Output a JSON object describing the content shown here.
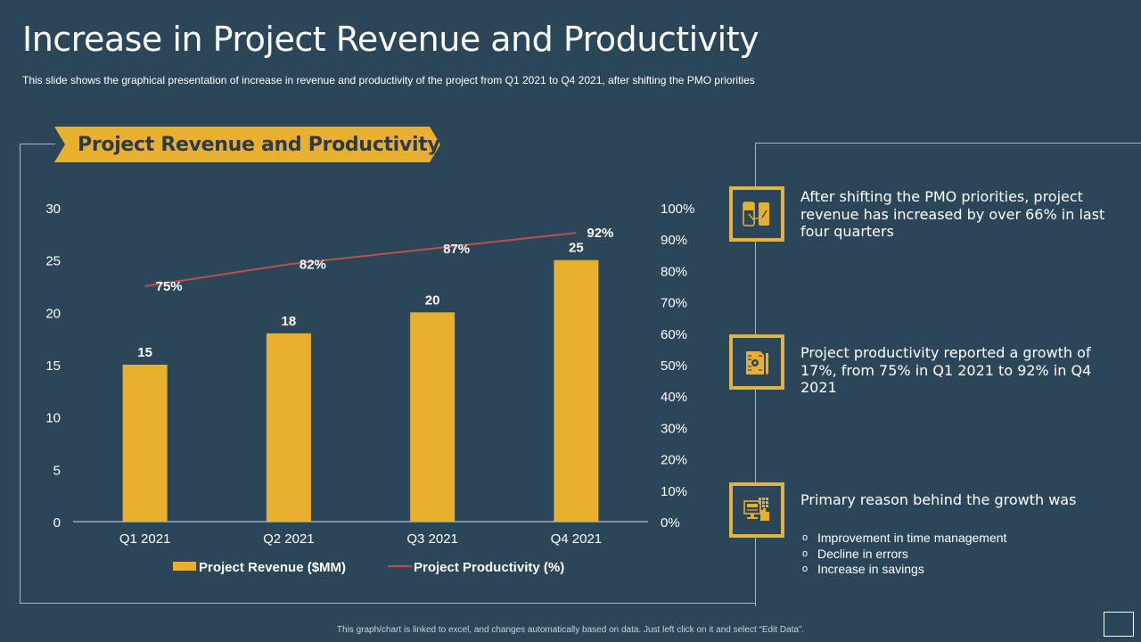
{
  "title": "Increase in Project Revenue and Productivity",
  "subtitle": "This slide shows the graphical presentation of increase in revenue  and productivity of the project from Q1 2021 to Q4 2021, after shifting the PMO priorities",
  "banner": "Project Revenue and Productivity",
  "colors": {
    "background": "#2b4559",
    "bar": "#e9b030",
    "line": "#c0504d",
    "accent": "#e2b343"
  },
  "chart_data": {
    "type": "bar+line",
    "title": "Project Revenue and Productivity",
    "categories": [
      "Q1 2021",
      "Q2 2021",
      "Q3 2021",
      "Q4 2021"
    ],
    "series": [
      {
        "name": "Project Revenue ($MM)",
        "type": "bar",
        "axis": "left",
        "values": [
          15,
          18,
          20,
          25
        ],
        "labels": [
          "15",
          "18",
          "20",
          "25"
        ]
      },
      {
        "name": "Project Productivity (%)",
        "type": "line",
        "axis": "right",
        "values": [
          75,
          82,
          87,
          92
        ],
        "labels": [
          "75%",
          "82%",
          "87%",
          "92%"
        ]
      }
    ],
    "y_left": {
      "min": 0,
      "max": 30,
      "ticks": [
        "0",
        "5",
        "10",
        "15",
        "20",
        "25",
        "30"
      ]
    },
    "y_right": {
      "min": 0,
      "max": 100,
      "ticks": [
        "0%",
        "10%",
        "20%",
        "30%",
        "40%",
        "50%",
        "60%",
        "70%",
        "80%",
        "90%",
        "100%"
      ]
    },
    "grid": false,
    "legend": "bottom"
  },
  "points": [
    {
      "icon": "mobile-transfer-icon",
      "text": "After shifting the PMO priorities, project revenue has increased  by over 66% in last four quarters"
    },
    {
      "icon": "document-gear-icon",
      "text": "Project productivity reported a growth of 17%, from 75% in Q1 2021 to 92% in Q4 2021"
    },
    {
      "icon": "computer-touch-icon",
      "text": "Primary reason behind the growth was"
    }
  ],
  "reasons": [
    "Improvement in time management",
    "Decline in errors",
    "Increase in savings"
  ],
  "bullet_glyph": "o",
  "footer_note": "This graph/chart is linked to excel, and changes automatically based on data. Just left click on it and select “Edit Data”."
}
